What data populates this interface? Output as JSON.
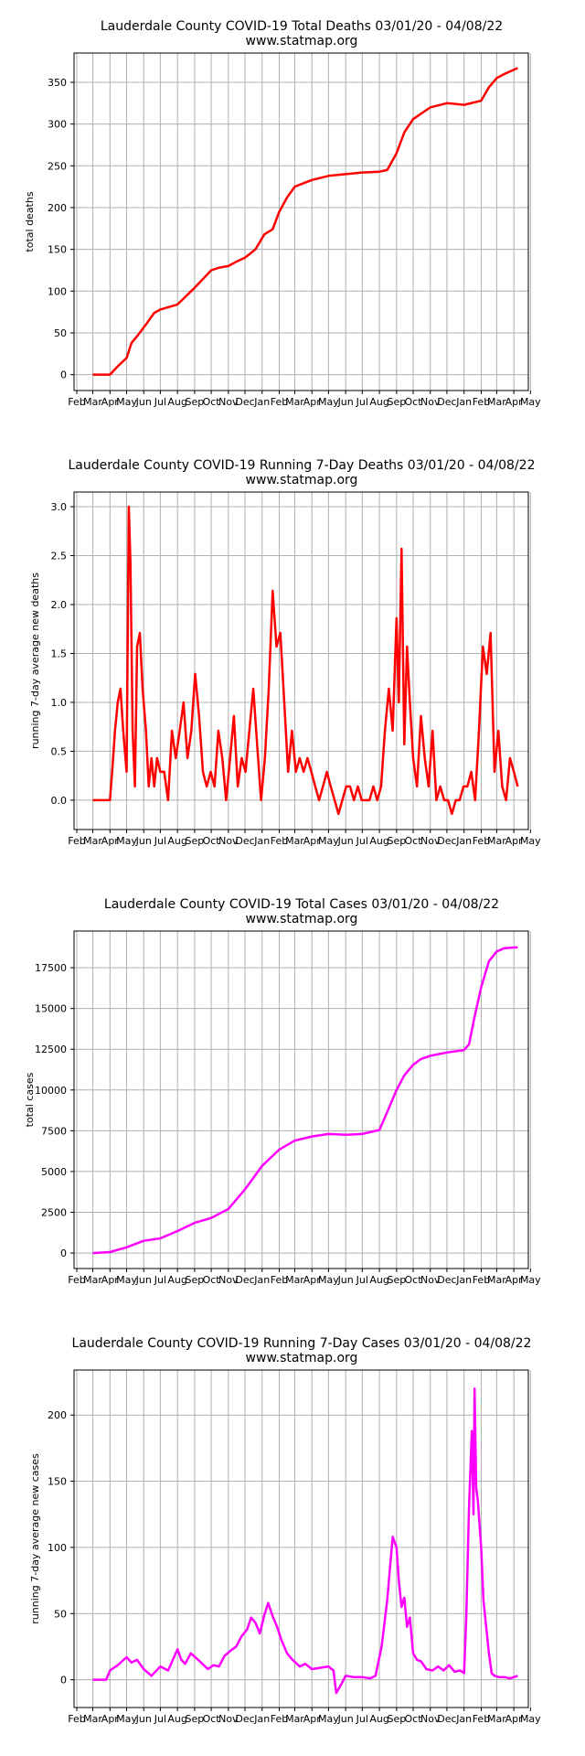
{
  "chart_data": [
    {
      "type": "line",
      "title": "Lauderdale County COVID-19 Total Deaths 03/01/20 - 04/08/22",
      "subtitle": "www.statmap.org",
      "xlabel": "",
      "ylabel": "total deaths",
      "color": "#ff0000",
      "x_tick_labels": [
        "Feb",
        "Mar",
        "Apr",
        "May",
        "Jun",
        "Jul",
        "Aug",
        "Sep",
        "Oct",
        "Nov",
        "Dec",
        "Jan",
        "Feb",
        "Mar",
        "Apr",
        "May",
        "Jun",
        "Jul",
        "Aug",
        "Sep",
        "Oct",
        "Nov",
        "Dec",
        "Jan",
        "Feb",
        "Mar",
        "Apr",
        "May"
      ],
      "y_ticks": [
        0,
        50,
        100,
        150,
        200,
        250,
        300,
        350
      ],
      "ylim": [
        -19,
        385
      ],
      "grid": true,
      "series": [
        {
          "x": [
            "2020-03-01",
            "2020-03-20",
            "2020-04-01",
            "2020-04-15",
            "2020-05-01",
            "2020-05-10",
            "2020-05-20",
            "2020-06-05",
            "2020-06-20",
            "2020-07-01",
            "2020-08-01",
            "2020-09-01",
            "2020-10-01",
            "2020-10-15",
            "2020-11-01",
            "2020-11-15",
            "2020-12-01",
            "2020-12-20",
            "2021-01-05",
            "2021-01-20",
            "2021-02-01",
            "2021-02-15",
            "2021-03-01",
            "2021-04-01",
            "2021-05-01",
            "2021-06-01",
            "2021-07-01",
            "2021-08-01",
            "2021-08-15",
            "2021-09-01",
            "2021-09-15",
            "2021-10-01",
            "2021-11-01",
            "2021-12-01",
            "2022-01-01",
            "2022-02-01",
            "2022-02-15",
            "2022-03-01",
            "2022-03-15",
            "2022-04-08"
          ],
          "y": [
            0,
            0,
            0,
            10,
            20,
            38,
            46,
            60,
            74,
            78,
            84,
            104,
            125,
            128,
            130,
            135,
            140,
            150,
            168,
            174,
            195,
            212,
            225,
            233,
            238,
            240,
            242,
            243,
            245,
            265,
            290,
            306,
            320,
            325,
            323,
            328,
            344,
            355,
            360,
            367
          ]
        }
      ]
    },
    {
      "type": "line",
      "title": "Lauderdale County COVID-19 Running 7-Day Deaths 03/01/20 - 04/08/22",
      "subtitle": "www.statmap.org",
      "xlabel": "",
      "ylabel": "running 7-day average new deaths",
      "color": "#ff0000",
      "x_tick_labels": [
        "Feb",
        "Mar",
        "Apr",
        "May",
        "Jun",
        "Jul",
        "Aug",
        "Sep",
        "Oct",
        "Nov",
        "Dec",
        "Jan",
        "Feb",
        "Mar",
        "Apr",
        "May",
        "Jun",
        "Jul",
        "Aug",
        "Sep",
        "Oct",
        "Nov",
        "Dec",
        "Jan",
        "Feb",
        "Mar",
        "Apr",
        "May"
      ],
      "y_ticks": [
        0.0,
        0.5,
        1.0,
        1.5,
        2.0,
        2.5,
        3.0
      ],
      "ylim": [
        -0.3,
        3.15
      ],
      "grid": true,
      "series": [
        {
          "x": [
            "2020-03-01",
            "2020-03-25",
            "2020-04-01",
            "2020-04-05",
            "2020-04-10",
            "2020-04-15",
            "2020-04-20",
            "2020-04-25",
            "2020-05-01",
            "2020-05-05",
            "2020-05-08",
            "2020-05-12",
            "2020-05-16",
            "2020-05-20",
            "2020-05-25",
            "2020-05-30",
            "2020-06-05",
            "2020-06-10",
            "2020-06-15",
            "2020-06-20",
            "2020-06-25",
            "2020-07-01",
            "2020-07-08",
            "2020-07-15",
            "2020-07-22",
            "2020-07-29",
            "2020-08-05",
            "2020-08-12",
            "2020-08-19",
            "2020-08-26",
            "2020-09-02",
            "2020-09-09",
            "2020-09-16",
            "2020-09-23",
            "2020-09-30",
            "2020-10-07",
            "2020-10-14",
            "2020-10-21",
            "2020-10-28",
            "2020-11-04",
            "2020-11-11",
            "2020-11-18",
            "2020-11-25",
            "2020-12-02",
            "2020-12-09",
            "2020-12-16",
            "2020-12-23",
            "2020-12-30",
            "2021-01-06",
            "2021-01-13",
            "2021-01-20",
            "2021-01-27",
            "2021-02-03",
            "2021-02-10",
            "2021-02-17",
            "2021-02-24",
            "2021-03-03",
            "2021-03-10",
            "2021-03-17",
            "2021-03-24",
            "2021-03-31",
            "2021-04-07",
            "2021-04-14",
            "2021-04-21",
            "2021-04-28",
            "2021-05-05",
            "2021-05-12",
            "2021-05-19",
            "2021-05-26",
            "2021-06-02",
            "2021-06-09",
            "2021-06-16",
            "2021-06-23",
            "2021-06-30",
            "2021-07-07",
            "2021-07-14",
            "2021-07-21",
            "2021-07-28",
            "2021-08-04",
            "2021-08-11",
            "2021-08-18",
            "2021-08-25",
            "2021-09-01",
            "2021-09-05",
            "2021-09-10",
            "2021-09-15",
            "2021-09-20",
            "2021-09-25",
            "2021-10-01",
            "2021-10-08",
            "2021-10-15",
            "2021-10-22",
            "2021-10-29",
            "2021-11-05",
            "2021-11-12",
            "2021-11-19",
            "2021-11-26",
            "2021-12-03",
            "2021-12-10",
            "2021-12-17",
            "2021-12-24",
            "2021-12-31",
            "2022-01-07",
            "2022-01-14",
            "2022-01-21",
            "2022-01-28",
            "2022-02-04",
            "2022-02-11",
            "2022-02-18",
            "2022-02-25",
            "2022-03-04",
            "2022-03-11",
            "2022-03-18",
            "2022-03-25",
            "2022-04-01",
            "2022-04-08"
          ],
          "y": [
            0,
            0,
            0,
            0.29,
            0.71,
            1.0,
            1.14,
            0.71,
            0.29,
            3.0,
            2.43,
            0.71,
            0.14,
            1.57,
            1.71,
            1.14,
            0.71,
            0.14,
            0.43,
            0.14,
            0.43,
            0.29,
            0.29,
            0.0,
            0.71,
            0.43,
            0.71,
            1.0,
            0.43,
            0.71,
            1.29,
            0.86,
            0.29,
            0.14,
            0.29,
            0.14,
            0.71,
            0.43,
            0.0,
            0.43,
            0.86,
            0.14,
            0.43,
            0.29,
            0.71,
            1.14,
            0.57,
            0.0,
            0.43,
            1.14,
            2.14,
            1.57,
            1.71,
            1.0,
            0.29,
            0.71,
            0.29,
            0.43,
            0.29,
            0.43,
            0.29,
            0.14,
            0.0,
            0.14,
            0.29,
            0.14,
            0.0,
            -0.14,
            0.0,
            0.14,
            0.14,
            0.0,
            0.14,
            0.0,
            0.0,
            0.0,
            0.14,
            0.0,
            0.14,
            0.71,
            1.14,
            0.71,
            1.86,
            1.0,
            2.57,
            0.57,
            1.57,
            1.0,
            0.43,
            0.14,
            0.86,
            0.43,
            0.14,
            0.71,
            0.0,
            0.14,
            0.0,
            0.0,
            -0.14,
            0.0,
            0.0,
            0.14,
            0.14,
            0.29,
            0.0,
            0.71,
            1.57,
            1.29,
            1.71,
            0.29,
            0.71,
            0.14,
            0.0,
            0.43,
            0.29,
            0.14
          ]
        }
      ]
    },
    {
      "type": "line",
      "title": "Lauderdale County COVID-19 Total Cases 03/01/20 - 04/08/22",
      "subtitle": "www.statmap.org",
      "xlabel": "",
      "ylabel": "total cases",
      "color": "#ff00ff",
      "x_tick_labels": [
        "Feb",
        "Mar",
        "Apr",
        "May",
        "Jun",
        "Jul",
        "Aug",
        "Sep",
        "Oct",
        "Nov",
        "Dec",
        "Jan",
        "Feb",
        "Mar",
        "Apr",
        "May",
        "Jun",
        "Jul",
        "Aug",
        "Sep",
        "Oct",
        "Nov",
        "Dec",
        "Jan",
        "Feb",
        "Mar",
        "Apr",
        "May"
      ],
      "y_ticks": [
        0,
        2500,
        5000,
        7500,
        10000,
        12500,
        15000,
        17500
      ],
      "ylim": [
        -950,
        19750
      ],
      "grid": true,
      "series": [
        {
          "x": [
            "2020-03-01",
            "2020-04-01",
            "2020-05-01",
            "2020-06-01",
            "2020-07-01",
            "2020-08-01",
            "2020-09-01",
            "2020-10-01",
            "2020-11-01",
            "2020-12-01",
            "2021-01-01",
            "2021-02-01",
            "2021-03-01",
            "2021-04-01",
            "2021-05-01",
            "2021-06-01",
            "2021-07-01",
            "2021-08-01",
            "2021-08-15",
            "2021-09-01",
            "2021-09-15",
            "2021-10-01",
            "2021-10-15",
            "2021-11-01",
            "2021-12-01",
            "2022-01-01",
            "2022-01-10",
            "2022-01-20",
            "2022-02-01",
            "2022-02-15",
            "2022-03-01",
            "2022-03-15",
            "2022-04-08"
          ],
          "y": [
            0,
            60,
            350,
            750,
            900,
            1350,
            1850,
            2150,
            2700,
            3900,
            5350,
            6350,
            6900,
            7150,
            7300,
            7250,
            7300,
            7550,
            8650,
            10000,
            10900,
            11550,
            11900,
            12100,
            12300,
            12450,
            12800,
            14500,
            16300,
            17900,
            18500,
            18700,
            18750
          ]
        }
      ]
    },
    {
      "type": "line",
      "title": "Lauderdale County COVID-19 Running 7-Day Cases 03/01/20 - 04/08/22",
      "subtitle": "www.statmap.org",
      "xlabel": "",
      "ylabel": "running 7-day average new cases",
      "color": "#ff00ff",
      "x_tick_labels": [
        "Feb",
        "Mar",
        "Apr",
        "May",
        "Jun",
        "Jul",
        "Aug",
        "Sep",
        "Oct",
        "Nov",
        "Dec",
        "Jan",
        "Feb",
        "Mar",
        "Apr",
        "May",
        "Jun",
        "Jul",
        "Aug",
        "Sep",
        "Oct",
        "Nov",
        "Dec",
        "Jan",
        "Feb",
        "Mar",
        "Apr",
        "May"
      ],
      "y_ticks": [
        0,
        50,
        100,
        150,
        200
      ],
      "ylim": [
        -21,
        234
      ],
      "grid": true,
      "series": [
        {
          "x": [
            "2020-03-01",
            "2020-03-25",
            "2020-04-01",
            "2020-04-15",
            "2020-05-01",
            "2020-05-10",
            "2020-05-20",
            "2020-06-01",
            "2020-06-15",
            "2020-07-01",
            "2020-07-15",
            "2020-08-01",
            "2020-08-08",
            "2020-08-15",
            "2020-08-25",
            "2020-09-05",
            "2020-09-15",
            "2020-09-25",
            "2020-10-05",
            "2020-10-15",
            "2020-10-25",
            "2020-11-05",
            "2020-11-15",
            "2020-11-25",
            "2020-12-05",
            "2020-12-12",
            "2020-12-20",
            "2020-12-28",
            "2021-01-05",
            "2021-01-12",
            "2021-01-20",
            "2021-01-28",
            "2021-02-05",
            "2021-02-15",
            "2021-02-25",
            "2021-03-10",
            "2021-03-20",
            "2021-04-01",
            "2021-04-15",
            "2021-05-01",
            "2021-05-10",
            "2021-05-15",
            "2021-05-22",
            "2021-06-01",
            "2021-06-15",
            "2021-07-01",
            "2021-07-15",
            "2021-07-25",
            "2021-08-05",
            "2021-08-15",
            "2021-08-25",
            "2021-09-01",
            "2021-09-05",
            "2021-09-10",
            "2021-09-15",
            "2021-09-20",
            "2021-09-25",
            "2021-10-01",
            "2021-10-08",
            "2021-10-15",
            "2021-10-25",
            "2021-11-05",
            "2021-11-15",
            "2021-11-25",
            "2021-12-05",
            "2021-12-15",
            "2021-12-25",
            "2022-01-01",
            "2022-01-05",
            "2022-01-10",
            "2022-01-15",
            "2022-01-18",
            "2022-01-20",
            "2022-01-23",
            "2022-01-26",
            "2022-02-01",
            "2022-02-05",
            "2022-02-10",
            "2022-02-15",
            "2022-02-20",
            "2022-02-25",
            "2022-03-05",
            "2022-03-15",
            "2022-03-25",
            "2022-04-01",
            "2022-04-08"
          ],
          "y": [
            0,
            0,
            7,
            11,
            17,
            13,
            15,
            8,
            3,
            10,
            7,
            23,
            15,
            12,
            20,
            16,
            12,
            8,
            11,
            10,
            18,
            22,
            25,
            33,
            38,
            47,
            43,
            35,
            49,
            58,
            48,
            40,
            30,
            20,
            15,
            10,
            12,
            8,
            9,
            10,
            7,
            -10,
            -5,
            3,
            2,
            2,
            1,
            3,
            25,
            60,
            108,
            100,
            75,
            55,
            62,
            40,
            47,
            20,
            15,
            14,
            8,
            7,
            10,
            7,
            11,
            6,
            7,
            5,
            47,
            130,
            188,
            125,
            220,
            145,
            135,
            100,
            60,
            40,
            20,
            5,
            3,
            2,
            2,
            1,
            2,
            3
          ]
        }
      ]
    }
  ]
}
